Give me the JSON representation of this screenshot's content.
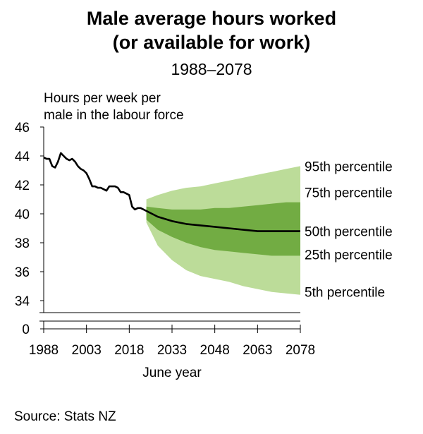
{
  "title_line1": "Male average hours worked",
  "title_line2": "(or available for work)",
  "subtitle": "1988–2078",
  "ylabel_line1": "Hours per week per",
  "ylabel_line2": "male in the labour force",
  "source": "Source: Stats NZ",
  "colors": {
    "outer_band": "#bcdc99",
    "inner_band": "#72ac43",
    "line": "#000000"
  },
  "chart_data": {
    "type": "area",
    "xlabel": "June year",
    "xlim": [
      1988,
      2078
    ],
    "ylim": [
      34,
      46
    ],
    "y_axis_break": true,
    "y_break_label": "0",
    "xticks": [
      "1988",
      "2003",
      "2018",
      "2033",
      "2048",
      "2063",
      "2078"
    ],
    "yticks": [
      "34",
      "36",
      "38",
      "40",
      "42",
      "44",
      "46"
    ],
    "historical": {
      "x": [
        1988,
        1989,
        1990,
        1991,
        1992,
        1993,
        1994,
        1995,
        1996,
        1997,
        1998,
        1999,
        2000,
        2001,
        2002,
        2003,
        2004,
        2005,
        2006,
        2007,
        2008,
        2009,
        2010,
        2011,
        2012,
        2013,
        2014,
        2015,
        2016,
        2017,
        2018,
        2019,
        2020,
        2021,
        2022
      ],
      "y": [
        43.9,
        43.8,
        43.8,
        43.3,
        43.2,
        43.6,
        44.2,
        44.0,
        43.8,
        43.7,
        43.8,
        43.6,
        43.3,
        43.1,
        43.0,
        42.8,
        42.4,
        41.9,
        41.9,
        41.8,
        41.8,
        41.7,
        41.6,
        41.9,
        41.9,
        41.9,
        41.8,
        41.5,
        41.5,
        41.4,
        41.3,
        40.5,
        40.3,
        40.4,
        40.4
      ]
    },
    "projection": {
      "x": [
        2024,
        2028,
        2033,
        2038,
        2043,
        2048,
        2053,
        2058,
        2063,
        2068,
        2073,
        2078
      ],
      "p95": [
        41.0,
        41.3,
        41.6,
        41.8,
        41.9,
        42.1,
        42.3,
        42.5,
        42.7,
        42.9,
        43.1,
        43.3
      ],
      "p75": [
        40.5,
        40.4,
        40.3,
        40.3,
        40.3,
        40.4,
        40.4,
        40.5,
        40.6,
        40.7,
        40.8,
        40.8
      ],
      "p50": [
        40.2,
        39.8,
        39.5,
        39.3,
        39.2,
        39.1,
        39.0,
        38.9,
        38.8,
        38.8,
        38.8,
        38.8
      ],
      "p25": [
        39.6,
        38.9,
        38.4,
        38.0,
        37.7,
        37.5,
        37.4,
        37.3,
        37.2,
        37.1,
        37.1,
        37.1
      ],
      "p5": [
        39.4,
        37.8,
        36.8,
        36.1,
        35.7,
        35.5,
        35.3,
        35.0,
        34.8,
        34.6,
        34.5,
        34.4
      ]
    },
    "series_labels": [
      {
        "name": "95th percentile",
        "y": 43.3
      },
      {
        "name": "75th percentile",
        "y": 41.5
      },
      {
        "name": "50th percentile",
        "y": 38.8
      },
      {
        "name": "25th percentile",
        "y": 37.2
      },
      {
        "name": "5th percentile",
        "y": 34.6
      }
    ]
  }
}
